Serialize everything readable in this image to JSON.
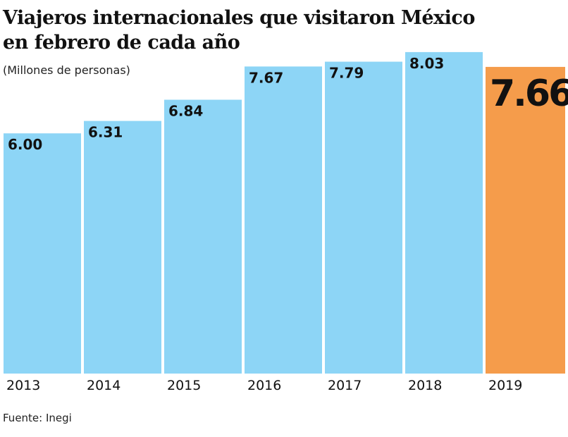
{
  "chart_data": {
    "type": "bar",
    "title": [
      "Viajeros internacionales que visitaron México",
      "en febrero de cada año"
    ],
    "subtitle": "(Millones de personas)",
    "source": "Fuente: Inegi",
    "categories": [
      "2013",
      "2014",
      "2015",
      "2016",
      "2017",
      "2018",
      "2019"
    ],
    "values": [
      6.0,
      6.31,
      6.84,
      7.67,
      7.79,
      8.03,
      7.66
    ],
    "value_labels": [
      "6.00",
      "6.31",
      "6.84",
      "7.67",
      "7.79",
      "8.03",
      "7.66"
    ],
    "colors": [
      "#8dd5f6",
      "#8dd5f6",
      "#8dd5f6",
      "#8dd5f6",
      "#8dd5f6",
      "#8dd5f6",
      "#f59c4b"
    ]
  }
}
